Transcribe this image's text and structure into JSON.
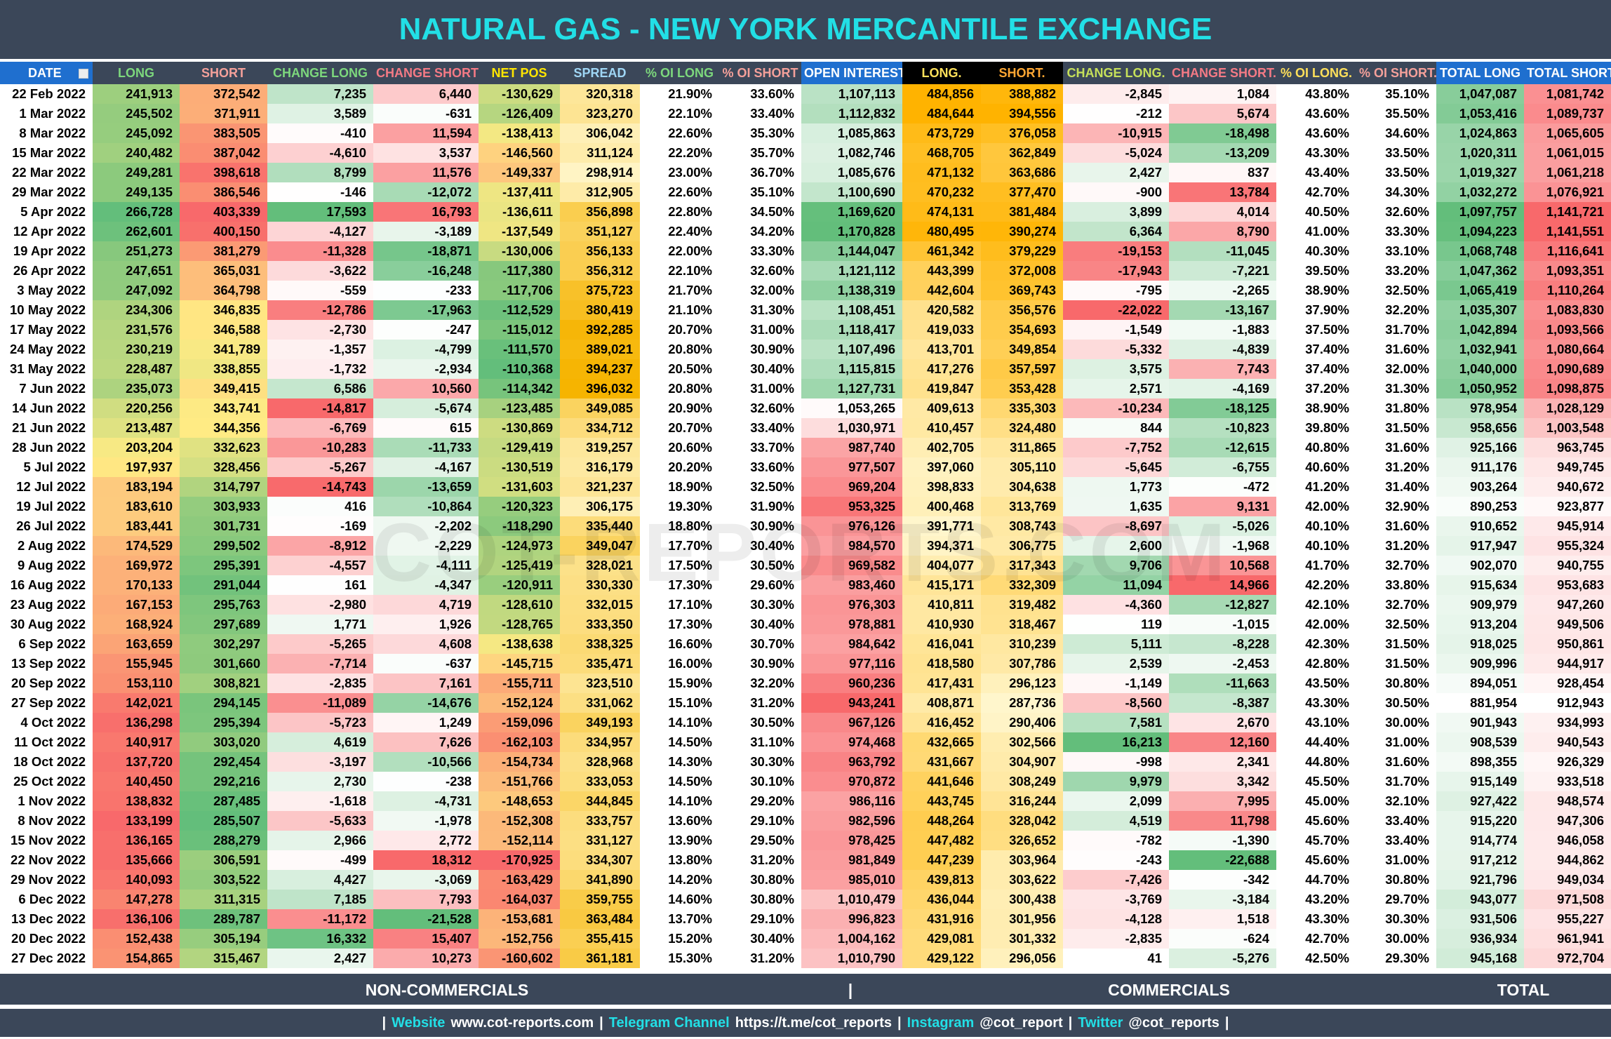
{
  "header": {
    "title": "NATURAL GAS - NEW YORK MERCANTILE EXCHANGE"
  },
  "watermark": "COT-REPORTS.COM",
  "table": {
    "columns": [
      "DATE",
      "LONG",
      "SHORT",
      "CHANGE LONG",
      "CHANGE SHORT",
      "NET POS",
      "SPREAD",
      "% OI LONG",
      "% OI SHORT",
      "OPEN INTEREST",
      "LONG.",
      "SHORT.",
      "CHANGE LONG.",
      "CHANGE SHORT.",
      "% OI LONG.",
      "% OI SHORT.",
      "TOTAL LONG",
      "TOTAL SHORT"
    ],
    "rows": [
      [
        "22 Feb 2022",
        "241,913",
        "372,542",
        "7,235",
        "6,440",
        "-130,629",
        "320,318",
        "21.90%",
        "33.60%",
        "1,107,113",
        "484,856",
        "388,882",
        "-2,845",
        "1,084",
        "43.80%",
        "35.10%",
        "1,047,087",
        "1,081,742"
      ],
      [
        "1 Mar 2022",
        "245,502",
        "371,911",
        "3,589",
        "-631",
        "-126,409",
        "323,270",
        "22.10%",
        "33.40%",
        "1,112,832",
        "484,644",
        "394,556",
        "-212",
        "5,674",
        "43.60%",
        "35.50%",
        "1,053,416",
        "1,089,737"
      ],
      [
        "8 Mar 2022",
        "245,092",
        "383,505",
        "-410",
        "11,594",
        "-138,413",
        "306,042",
        "22.60%",
        "35.30%",
        "1,085,863",
        "473,729",
        "376,058",
        "-10,915",
        "-18,498",
        "43.60%",
        "34.60%",
        "1,024,863",
        "1,065,605"
      ],
      [
        "15 Mar 2022",
        "240,482",
        "387,042",
        "-4,610",
        "3,537",
        "-146,560",
        "311,124",
        "22.20%",
        "35.70%",
        "1,082,746",
        "468,705",
        "362,849",
        "-5,024",
        "-13,209",
        "43.30%",
        "33.50%",
        "1,020,311",
        "1,061,015"
      ],
      [
        "22 Mar 2022",
        "249,281",
        "398,618",
        "8,799",
        "11,576",
        "-149,337",
        "298,914",
        "23.00%",
        "36.70%",
        "1,085,676",
        "471,132",
        "363,686",
        "2,427",
        "837",
        "43.40%",
        "33.50%",
        "1,019,327",
        "1,061,218"
      ],
      [
        "29 Mar 2022",
        "249,135",
        "386,546",
        "-146",
        "-12,072",
        "-137,411",
        "312,905",
        "22.60%",
        "35.10%",
        "1,100,690",
        "470,232",
        "377,470",
        "-900",
        "13,784",
        "42.70%",
        "34.30%",
        "1,032,272",
        "1,076,921"
      ],
      [
        "5 Apr 2022",
        "266,728",
        "403,339",
        "17,593",
        "16,793",
        "-136,611",
        "356,898",
        "22.80%",
        "34.50%",
        "1,169,620",
        "474,131",
        "381,484",
        "3,899",
        "4,014",
        "40.50%",
        "32.60%",
        "1,097,757",
        "1,141,721"
      ],
      [
        "12 Apr 2022",
        "262,601",
        "400,150",
        "-4,127",
        "-3,189",
        "-137,549",
        "351,127",
        "22.40%",
        "34.20%",
        "1,170,828",
        "480,495",
        "390,274",
        "6,364",
        "8,790",
        "41.00%",
        "33.30%",
        "1,094,223",
        "1,141,551"
      ],
      [
        "19 Apr 2022",
        "251,273",
        "381,279",
        "-11,328",
        "-18,871",
        "-130,006",
        "356,133",
        "22.00%",
        "33.30%",
        "1,144,047",
        "461,342",
        "379,229",
        "-19,153",
        "-11,045",
        "40.30%",
        "33.10%",
        "1,068,748",
        "1,116,641"
      ],
      [
        "26 Apr 2022",
        "247,651",
        "365,031",
        "-3,622",
        "-16,248",
        "-117,380",
        "356,312",
        "22.10%",
        "32.60%",
        "1,121,112",
        "443,399",
        "372,008",
        "-17,943",
        "-7,221",
        "39.50%",
        "33.20%",
        "1,047,362",
        "1,093,351"
      ],
      [
        "3 May 2022",
        "247,092",
        "364,798",
        "-559",
        "-233",
        "-117,706",
        "375,723",
        "21.70%",
        "32.00%",
        "1,138,319",
        "442,604",
        "369,743",
        "-795",
        "-2,265",
        "38.90%",
        "32.50%",
        "1,065,419",
        "1,110,264"
      ],
      [
        "10 May 2022",
        "234,306",
        "346,835",
        "-12,786",
        "-17,963",
        "-112,529",
        "380,419",
        "21.10%",
        "31.30%",
        "1,108,451",
        "420,582",
        "356,576",
        "-22,022",
        "-13,167",
        "37.90%",
        "32.20%",
        "1,035,307",
        "1,083,830"
      ],
      [
        "17 May 2022",
        "231,576",
        "346,588",
        "-2,730",
        "-247",
        "-115,012",
        "392,285",
        "20.70%",
        "31.00%",
        "1,118,417",
        "419,033",
        "354,693",
        "-1,549",
        "-1,883",
        "37.50%",
        "31.70%",
        "1,042,894",
        "1,093,566"
      ],
      [
        "24 May 2022",
        "230,219",
        "341,789",
        "-1,357",
        "-4,799",
        "-111,570",
        "389,021",
        "20.80%",
        "30.90%",
        "1,107,496",
        "413,701",
        "349,854",
        "-5,332",
        "-4,839",
        "37.40%",
        "31.60%",
        "1,032,941",
        "1,080,664"
      ],
      [
        "31 May 2022",
        "228,487",
        "338,855",
        "-1,732",
        "-2,934",
        "-110,368",
        "394,237",
        "20.50%",
        "30.40%",
        "1,115,815",
        "417,276",
        "357,597",
        "3,575",
        "7,743",
        "37.40%",
        "32.00%",
        "1,040,000",
        "1,090,689"
      ],
      [
        "7 Jun 2022",
        "235,073",
        "349,415",
        "6,586",
        "10,560",
        "-114,342",
        "396,032",
        "20.80%",
        "31.00%",
        "1,127,731",
        "419,847",
        "353,428",
        "2,571",
        "-4,169",
        "37.20%",
        "31.30%",
        "1,050,952",
        "1,098,875"
      ],
      [
        "14 Jun 2022",
        "220,256",
        "343,741",
        "-14,817",
        "-5,674",
        "-123,485",
        "349,085",
        "20.90%",
        "32.60%",
        "1,053,265",
        "409,613",
        "335,303",
        "-10,234",
        "-18,125",
        "38.90%",
        "31.80%",
        "978,954",
        "1,028,129"
      ],
      [
        "21 Jun 2022",
        "213,487",
        "344,356",
        "-6,769",
        "615",
        "-130,869",
        "334,712",
        "20.70%",
        "33.40%",
        "1,030,971",
        "410,457",
        "324,480",
        "844",
        "-10,823",
        "39.80%",
        "31.50%",
        "958,656",
        "1,003,548"
      ],
      [
        "28 Jun 2022",
        "203,204",
        "332,623",
        "-10,283",
        "-11,733",
        "-129,419",
        "319,257",
        "20.60%",
        "33.70%",
        "987,740",
        "402,705",
        "311,865",
        "-7,752",
        "-12,615",
        "40.80%",
        "31.60%",
        "925,166",
        "963,745"
      ],
      [
        "5 Jul 2022",
        "197,937",
        "328,456",
        "-5,267",
        "-4,167",
        "-130,519",
        "316,179",
        "20.20%",
        "33.60%",
        "977,507",
        "397,060",
        "305,110",
        "-5,645",
        "-6,755",
        "40.60%",
        "31.20%",
        "911,176",
        "949,745"
      ],
      [
        "12 Jul 2022",
        "183,194",
        "314,797",
        "-14,743",
        "-13,659",
        "-131,603",
        "321,237",
        "18.90%",
        "32.50%",
        "969,204",
        "398,833",
        "304,638",
        "1,773",
        "-472",
        "41.20%",
        "31.40%",
        "903,264",
        "940,672"
      ],
      [
        "19 Jul 2022",
        "183,610",
        "303,933",
        "416",
        "-10,864",
        "-120,323",
        "306,175",
        "19.30%",
        "31.90%",
        "953,325",
        "400,468",
        "313,769",
        "1,635",
        "9,131",
        "42.00%",
        "32.90%",
        "890,253",
        "923,877"
      ],
      [
        "26 Jul 2022",
        "183,441",
        "301,731",
        "-169",
        "-2,202",
        "-118,290",
        "335,440",
        "18.80%",
        "30.90%",
        "976,126",
        "391,771",
        "308,743",
        "-8,697",
        "-5,026",
        "40.10%",
        "31.60%",
        "910,652",
        "945,914"
      ],
      [
        "2 Aug 2022",
        "174,529",
        "299,502",
        "-8,912",
        "-2,229",
        "-124,973",
        "349,047",
        "17.70%",
        "30.40%",
        "984,570",
        "394,371",
        "306,775",
        "2,600",
        "-1,968",
        "40.10%",
        "31.20%",
        "917,947",
        "955,324"
      ],
      [
        "9 Aug 2022",
        "169,972",
        "295,391",
        "-4,557",
        "-4,111",
        "-125,419",
        "328,021",
        "17.50%",
        "30.50%",
        "969,582",
        "404,077",
        "317,343",
        "9,706",
        "10,568",
        "41.70%",
        "32.70%",
        "902,070",
        "940,755"
      ],
      [
        "16 Aug 2022",
        "170,133",
        "291,044",
        "161",
        "-4,347",
        "-120,911",
        "330,330",
        "17.30%",
        "29.60%",
        "983,460",
        "415,171",
        "332,309",
        "11,094",
        "14,966",
        "42.20%",
        "33.80%",
        "915,634",
        "953,683"
      ],
      [
        "23 Aug 2022",
        "167,153",
        "295,763",
        "-2,980",
        "4,719",
        "-128,610",
        "332,015",
        "17.10%",
        "30.30%",
        "976,303",
        "410,811",
        "319,482",
        "-4,360",
        "-12,827",
        "42.10%",
        "32.70%",
        "909,979",
        "947,260"
      ],
      [
        "30 Aug 2022",
        "168,924",
        "297,689",
        "1,771",
        "1,926",
        "-128,765",
        "333,350",
        "17.30%",
        "30.40%",
        "978,881",
        "410,930",
        "318,467",
        "119",
        "-1,015",
        "42.00%",
        "32.50%",
        "913,204",
        "949,506"
      ],
      [
        "6 Sep 2022",
        "163,659",
        "302,297",
        "-5,265",
        "4,608",
        "-138,638",
        "338,325",
        "16.60%",
        "30.70%",
        "984,642",
        "416,041",
        "310,239",
        "5,111",
        "-8,228",
        "42.30%",
        "31.50%",
        "918,025",
        "950,861"
      ],
      [
        "13 Sep 2022",
        "155,945",
        "301,660",
        "-7,714",
        "-637",
        "-145,715",
        "335,471",
        "16.00%",
        "30.90%",
        "977,116",
        "418,580",
        "307,786",
        "2,539",
        "-2,453",
        "42.80%",
        "31.50%",
        "909,996",
        "944,917"
      ],
      [
        "20 Sep 2022",
        "153,110",
        "308,821",
        "-2,835",
        "7,161",
        "-155,711",
        "323,510",
        "15.90%",
        "32.20%",
        "960,236",
        "417,431",
        "296,123",
        "-1,149",
        "-11,663",
        "43.50%",
        "30.80%",
        "894,051",
        "928,454"
      ],
      [
        "27 Sep 2022",
        "142,021",
        "294,145",
        "-11,089",
        "-14,676",
        "-152,124",
        "331,062",
        "15.10%",
        "31.20%",
        "943,241",
        "408,871",
        "287,736",
        "-8,560",
        "-8,387",
        "43.30%",
        "30.50%",
        "881,954",
        "912,943"
      ],
      [
        "4 Oct 2022",
        "136,298",
        "295,394",
        "-5,723",
        "1,249",
        "-159,096",
        "349,193",
        "14.10%",
        "30.50%",
        "967,126",
        "416,452",
        "290,406",
        "7,581",
        "2,670",
        "43.10%",
        "30.00%",
        "901,943",
        "934,993"
      ],
      [
        "11 Oct 2022",
        "140,917",
        "303,020",
        "4,619",
        "7,626",
        "-162,103",
        "334,957",
        "14.50%",
        "31.10%",
        "974,468",
        "432,665",
        "302,566",
        "16,213",
        "12,160",
        "44.40%",
        "31.00%",
        "908,539",
        "940,543"
      ],
      [
        "18 Oct 2022",
        "137,720",
        "292,454",
        "-3,197",
        "-10,566",
        "-154,734",
        "328,968",
        "14.30%",
        "30.30%",
        "963,792",
        "431,667",
        "304,907",
        "-998",
        "2,341",
        "44.80%",
        "31.60%",
        "898,355",
        "926,329"
      ],
      [
        "25 Oct 2022",
        "140,450",
        "292,216",
        "2,730",
        "-238",
        "-151,766",
        "333,053",
        "14.50%",
        "30.10%",
        "970,872",
        "441,646",
        "308,249",
        "9,979",
        "3,342",
        "45.50%",
        "31.70%",
        "915,149",
        "933,518"
      ],
      [
        "1 Nov 2022",
        "138,832",
        "287,485",
        "-1,618",
        "-4,731",
        "-148,653",
        "344,845",
        "14.10%",
        "29.20%",
        "986,116",
        "443,745",
        "316,244",
        "2,099",
        "7,995",
        "45.00%",
        "32.10%",
        "927,422",
        "948,574"
      ],
      [
        "8 Nov 2022",
        "133,199",
        "285,507",
        "-5,633",
        "-1,978",
        "-152,308",
        "333,757",
        "13.60%",
        "29.10%",
        "982,596",
        "448,264",
        "328,042",
        "4,519",
        "11,798",
        "45.60%",
        "33.40%",
        "915,220",
        "947,306"
      ],
      [
        "15 Nov 2022",
        "136,165",
        "288,279",
        "2,966",
        "2,772",
        "-152,114",
        "331,127",
        "13.90%",
        "29.50%",
        "978,425",
        "447,482",
        "326,652",
        "-782",
        "-1,390",
        "45.70%",
        "33.40%",
        "914,774",
        "946,058"
      ],
      [
        "22 Nov 2022",
        "135,666",
        "306,591",
        "-499",
        "18,312",
        "-170,925",
        "334,307",
        "13.80%",
        "31.20%",
        "981,849",
        "447,239",
        "303,964",
        "-243",
        "-22,688",
        "45.60%",
        "31.00%",
        "917,212",
        "944,862"
      ],
      [
        "29 Nov 2022",
        "140,093",
        "303,522",
        "4,427",
        "-3,069",
        "-163,429",
        "341,890",
        "14.20%",
        "30.80%",
        "985,010",
        "439,813",
        "303,622",
        "-7,426",
        "-342",
        "44.70%",
        "30.80%",
        "921,796",
        "949,034"
      ],
      [
        "6 Dec 2022",
        "147,278",
        "311,315",
        "7,185",
        "7,793",
        "-164,037",
        "359,755",
        "14.60%",
        "30.80%",
        "1,010,479",
        "436,044",
        "300,438",
        "-3,769",
        "-3,184",
        "43.20%",
        "29.70%",
        "943,077",
        "971,508"
      ],
      [
        "13 Dec 2022",
        "136,106",
        "289,787",
        "-11,172",
        "-21,528",
        "-153,681",
        "363,484",
        "13.70%",
        "29.10%",
        "996,823",
        "431,916",
        "301,956",
        "-4,128",
        "1,518",
        "43.30%",
        "30.30%",
        "931,506",
        "955,227"
      ],
      [
        "20 Dec 2022",
        "152,438",
        "305,194",
        "16,332",
        "15,407",
        "-152,756",
        "355,415",
        "15.20%",
        "30.40%",
        "1,004,162",
        "429,081",
        "301,332",
        "-2,835",
        "-624",
        "42.70%",
        "30.00%",
        "936,934",
        "961,941"
      ],
      [
        "27 Dec 2022",
        "154,865",
        "315,467",
        "2,427",
        "10,273",
        "-160,602",
        "361,181",
        "15.30%",
        "31.20%",
        "1,010,790",
        "429,122",
        "296,056",
        "41",
        "-5,276",
        "42.50%",
        "29.30%",
        "945,168",
        "972,704"
      ]
    ]
  },
  "footer": {
    "sections": [
      "NON-COMMERCIALS",
      "COMMERCIALS",
      "TOTAL"
    ],
    "separator": "|",
    "links": [
      {
        "label": "Website",
        "text": "www.cot-reports.com"
      },
      {
        "label": "Telegram Channel",
        "text": "https://t.me/cot_reports"
      },
      {
        "label": "Instagram",
        "text": "@cot_report"
      },
      {
        "label": "Twitter",
        "text": "@cot_reports"
      }
    ]
  }
}
